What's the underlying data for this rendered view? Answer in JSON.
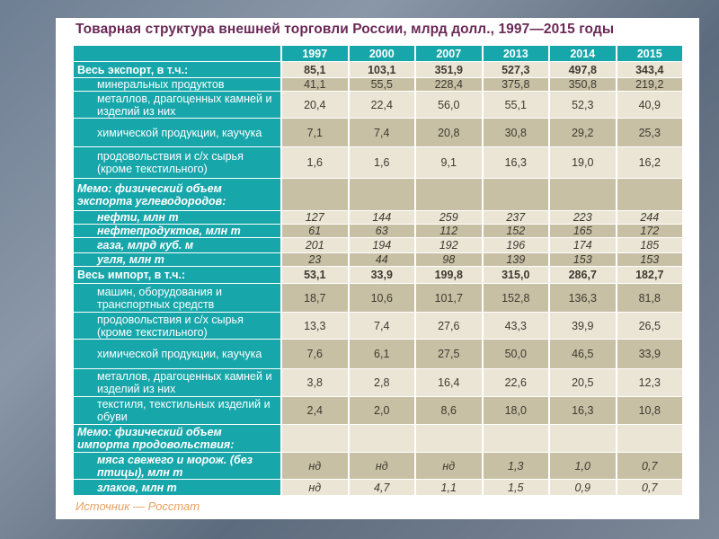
{
  "title": "Товарная структура внешней торговли России, млрд долл., 1997—2015 годы",
  "table": {
    "years": [
      "1997",
      "2000",
      "2007",
      "2013",
      "2014",
      "2015"
    ],
    "rows": [
      {
        "label": "Весь экспорт, в т.ч.:",
        "style": "bold",
        "values": [
          "85,1",
          "103,1",
          "351,9",
          "527,3",
          "497,8",
          "343,4"
        ]
      },
      {
        "label": "минеральных продуктов",
        "style": "ind",
        "values": [
          "41,1",
          "55,5",
          "228,4",
          "375,8",
          "350,8",
          "219,2"
        ]
      },
      {
        "label": "металлов, драгоценных камней и изделий из них",
        "style": "ind",
        "values": [
          "20,4",
          "22,4",
          "56,0",
          "55,1",
          "52,3",
          "40,9"
        ]
      },
      {
        "label": "химической продукции, каучука",
        "style": "ind",
        "values": [
          "7,1",
          "7,4",
          "20,8",
          "30,8",
          "29,2",
          "25,3"
        ]
      },
      {
        "label": "продовольствия и с/х сырья (кроме текстильного)",
        "style": "ind",
        "values": [
          "1,6",
          "1,6",
          "9,1",
          "16,3",
          "19,0",
          "16,2"
        ]
      },
      {
        "label": "Мемо: физический объем экспорта углеводородов:",
        "style": "it",
        "values": [
          "",
          "",
          "",
          "",
          "",
          ""
        ]
      },
      {
        "label": "нефти, млн т",
        "style": "it ind",
        "values": [
          "127",
          "144",
          "259",
          "237",
          "223",
          "244"
        ]
      },
      {
        "label": "нефтепродуктов, млн т",
        "style": "it ind",
        "values": [
          "61",
          "63",
          "112",
          "152",
          "165",
          "172"
        ]
      },
      {
        "label": "газа, млрд куб. м",
        "style": "it ind",
        "values": [
          "201",
          "194",
          "192",
          "196",
          "174",
          "185"
        ]
      },
      {
        "label": "угля, млн т",
        "style": "it ind",
        "values": [
          "23",
          "44",
          "98",
          "139",
          "153",
          "153"
        ]
      },
      {
        "label": "Весь импорт, в т.ч.:",
        "style": "bold",
        "values": [
          "53,1",
          "33,9",
          "199,8",
          "315,0",
          "286,7",
          "182,7"
        ]
      },
      {
        "label": "машин, оборудования и транспортных средств",
        "style": "ind",
        "values": [
          "18,7",
          "10,6",
          "101,7",
          "152,8",
          "136,3",
          "81,8"
        ]
      },
      {
        "label": "продовольствия и с/х сырья (кроме текстильного)",
        "style": "ind",
        "values": [
          "13,3",
          "7,4",
          "27,6",
          "43,3",
          "39,9",
          "26,5"
        ]
      },
      {
        "label": "химической продукции, каучука",
        "style": "ind",
        "values": [
          "7,6",
          "6,1",
          "27,5",
          "50,0",
          "46,5",
          "33,9"
        ]
      },
      {
        "label": "металлов, драгоценных камней и изделий из них",
        "style": "ind",
        "values": [
          "3,8",
          "2,8",
          "16,4",
          "22,6",
          "20,5",
          "12,3"
        ]
      },
      {
        "label": "текстиля, текстильных изделий и обуви",
        "style": "ind",
        "values": [
          "2,4",
          "2,0",
          "8,6",
          "18,0",
          "16,3",
          "10,8"
        ]
      },
      {
        "label": "Мемо: физический объем импорта продовольствия:",
        "style": "it",
        "values": [
          "",
          "",
          "",
          "",
          "",
          ""
        ]
      },
      {
        "label": "мяса свежего и морож. (без птицы), млн т",
        "style": "it ind",
        "values": [
          "нд",
          "нд",
          "нд",
          "1,3",
          "1,0",
          "0,7"
        ]
      },
      {
        "label": "злаков, млн т",
        "style": "it ind",
        "values": [
          "нд",
          "4,7",
          "1,1",
          "1,5",
          "0,9",
          "0,7"
        ]
      }
    ]
  },
  "source": "Источник — Росстат"
}
